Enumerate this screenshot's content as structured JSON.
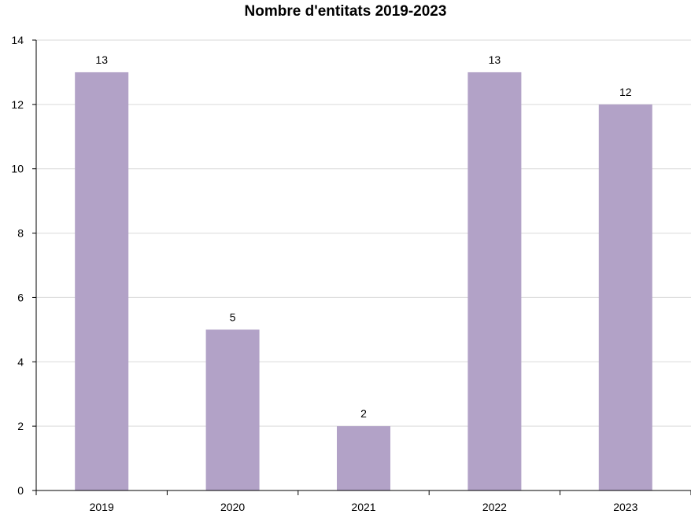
{
  "chart_data": {
    "type": "bar",
    "title": "Nombre d'entitats 2019-2023",
    "xlabel": "",
    "ylabel": "",
    "categories": [
      "2019",
      "2020",
      "2021",
      "2022",
      "2023"
    ],
    "values": [
      13,
      5,
      2,
      13,
      12
    ],
    "data_labels": [
      "13",
      "5",
      "2",
      "13",
      "12"
    ],
    "ylim": [
      0,
      14
    ],
    "yticks": [
      "0",
      "2",
      "4",
      "6",
      "8",
      "10",
      "12",
      "14"
    ],
    "grid": true,
    "legend": "none",
    "bar_color": "#b2a2c7",
    "grid_color": "#d9d9d9",
    "axis_color": "#000000"
  }
}
